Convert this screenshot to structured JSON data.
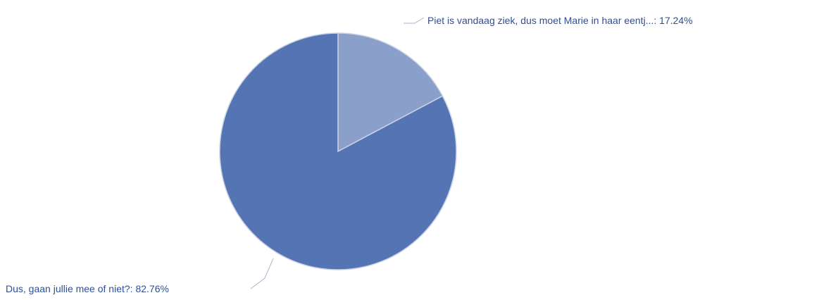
{
  "chart_data": {
    "type": "pie",
    "slices": [
      {
        "label": "Piet is vandaag ziek, dus moet Marie in haar eentj...",
        "value": 17.24,
        "display": "Piet is vandaag ziek, dus moet Marie in haar eentj...: 17.24%",
        "color": "#8a9fca"
      },
      {
        "label": "Dus, gaan jullie mee of niet?",
        "value": 82.76,
        "display": "Dus, gaan jullie mee of niet?: 82.76%",
        "color": "#5574b3"
      }
    ],
    "label_color": "#2e4f96",
    "leader_color": "#aab4c8",
    "edge_color": "#c9d2e4"
  }
}
